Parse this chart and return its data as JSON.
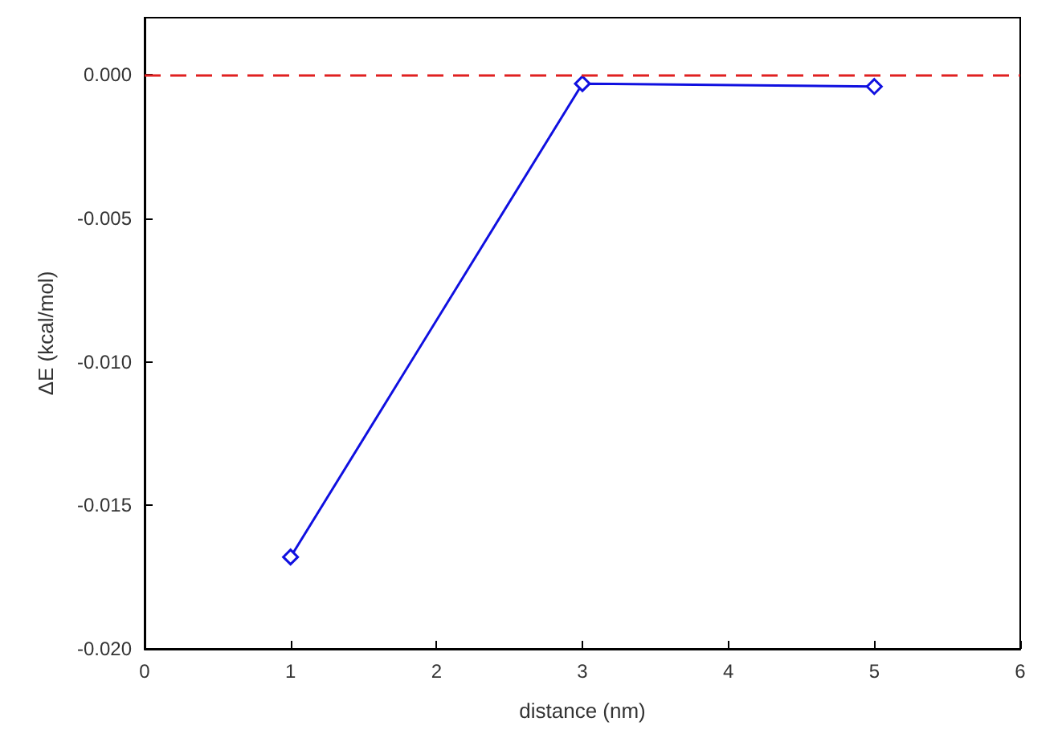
{
  "chart_data": {
    "type": "line",
    "xlabel": "distance (nm)",
    "ylabel": "ΔE (kcal/mol)",
    "x": [
      1,
      3,
      5
    ],
    "series": [
      {
        "color": "#1010e0",
        "values": [
          -0.0168,
          -0.0003,
          -0.0004
        ]
      }
    ],
    "xlim": [
      0,
      6
    ],
    "xticks": [
      0,
      1,
      2,
      3,
      4,
      5,
      6
    ],
    "ylim": [
      -0.02,
      0.002
    ],
    "yticks": [
      {
        "value": -0.02,
        "label": "-0.020"
      },
      {
        "value": -0.015,
        "label": "-0.015"
      },
      {
        "value": -0.01,
        "label": "-0.010"
      },
      {
        "value": -0.005,
        "label": "-0.005"
      },
      {
        "value": 0,
        "label": "0.000"
      }
    ],
    "ref_lines": [
      {
        "axis": "y",
        "value": 0,
        "color": "#e02020",
        "line_style": "dashed"
      }
    ],
    "marker": "diamond",
    "line_style": "solid",
    "grid": false
  }
}
